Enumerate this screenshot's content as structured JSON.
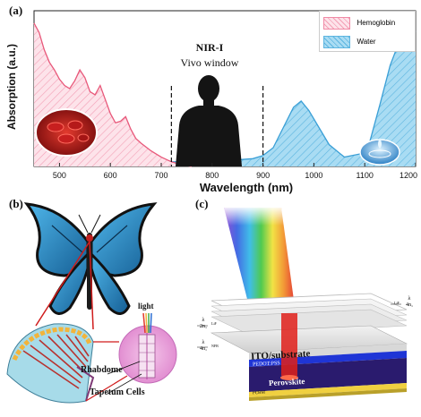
{
  "panel_a": {
    "label": "(a)",
    "ylabel": "Absorption (a.u.)",
    "xlabel": "Wavelength (nm)",
    "x_ticks": [
      "500",
      "600",
      "700",
      "800",
      "900",
      "1000",
      "1100",
      "1200"
    ],
    "window_title": "NIR-I",
    "window_subtitle": "Vivo window",
    "legend": [
      {
        "name": "Hemoglobin",
        "color": "#f48aa6"
      },
      {
        "name": "Water",
        "color": "#7fc4e6"
      }
    ]
  },
  "chart_data": {
    "type": "area",
    "xlabel": "Wavelength (nm)",
    "ylabel": "Absorption (a.u.)",
    "xlim": [
      450,
      1200
    ],
    "x_ticks": [
      500,
      600,
      700,
      800,
      900,
      1000,
      1100,
      1200
    ],
    "window_lines": [
      720,
      900
    ],
    "series": [
      {
        "name": "Hemoglobin",
        "color": "#e8587a",
        "x": [
          450,
          460,
          470,
          480,
          490,
          500,
          510,
          520,
          530,
          540,
          550,
          560,
          570,
          580,
          590,
          600,
          610,
          620,
          630,
          640,
          650,
          660,
          680,
          700,
          720,
          740,
          760
        ],
        "y": [
          0.92,
          0.86,
          0.75,
          0.67,
          0.62,
          0.56,
          0.52,
          0.5,
          0.55,
          0.62,
          0.57,
          0.48,
          0.46,
          0.52,
          0.43,
          0.34,
          0.28,
          0.29,
          0.32,
          0.24,
          0.18,
          0.15,
          0.1,
          0.06,
          0.03,
          0.01,
          0.0
        ]
      },
      {
        "name": "Water",
        "color": "#3a9fd6",
        "x": [
          450,
          700,
          800,
          880,
          900,
          920,
          940,
          960,
          975,
          990,
          1010,
          1030,
          1060,
          1090,
          1110,
          1130,
          1150,
          1170,
          1185,
          1200
        ],
        "y": [
          0.03,
          0.03,
          0.03,
          0.05,
          0.07,
          0.12,
          0.25,
          0.38,
          0.42,
          0.36,
          0.25,
          0.14,
          0.06,
          0.08,
          0.16,
          0.4,
          0.65,
          0.82,
          0.85,
          0.87
        ]
      }
    ]
  },
  "panel_b": {
    "label": "(b)",
    "light": "light",
    "rhabdome": "Rhabdome",
    "tapetum": "Tapetum Cells"
  },
  "panel_c": {
    "label": "(c)",
    "layers": {
      "ito": "ITO/substrate",
      "pedot": "PEDOT:PSS",
      "perovskite": "Perovskite",
      "pcbm": "PCBM"
    },
    "frac_left_1": "λ",
    "frac_left_1b": "2n₁",
    "frac_left_2": "λ",
    "frac_left_2b": "4n₁",
    "frac_right": "λ",
    "frac_right_b": "4n₁",
    "tag_lif": "LiF",
    "tag_nfb": "NFB",
    "tag_lif2": "LiF"
  }
}
